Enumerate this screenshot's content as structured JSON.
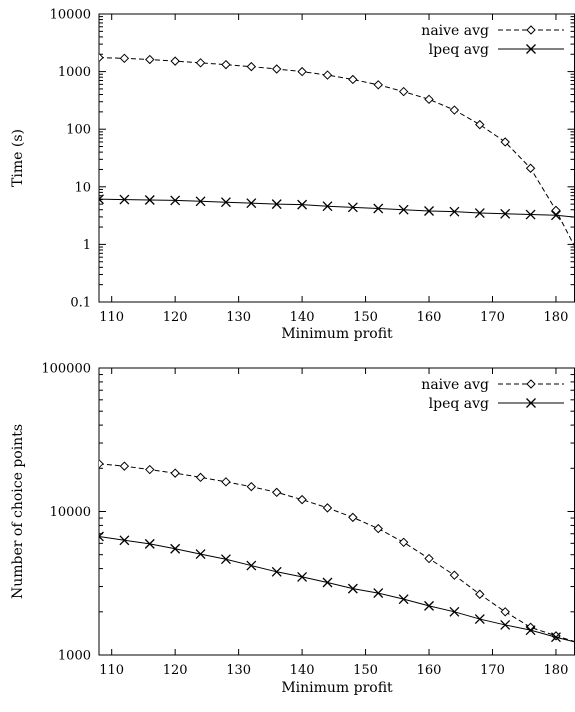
{
  "chart_data": [
    {
      "type": "line",
      "xlabel": "Minimum profit",
      "ylabel": "Time (s)",
      "yscale": "log",
      "xlim": [
        108,
        183
      ],
      "ylim": [
        0.1,
        10000
      ],
      "x_ticks": [
        110,
        120,
        130,
        140,
        150,
        160,
        170,
        180
      ],
      "y_ticks": [
        {
          "value": 0.1,
          "label": "0.1"
        },
        {
          "value": 1,
          "label": "1"
        },
        {
          "value": 10,
          "label": "10"
        },
        {
          "value": 100,
          "label": "100"
        },
        {
          "value": 1000,
          "label": "1000"
        },
        {
          "value": 10000,
          "label": "10000"
        }
      ],
      "grid": false,
      "legend_position": "top-right",
      "series": [
        {
          "name": "naive avg",
          "style": "dashed",
          "marker": "diamond",
          "x": [
            108,
            112,
            116,
            120,
            124,
            128,
            132,
            136,
            140,
            144,
            148,
            152,
            156,
            160,
            164,
            168,
            172,
            176,
            180,
            184
          ],
          "y": [
            1750,
            1700,
            1620,
            1520,
            1420,
            1320,
            1220,
            1110,
            1000,
            870,
            730,
            590,
            450,
            330,
            215,
            120,
            60,
            21,
            3.9,
            0.55
          ]
        },
        {
          "name": "lpeq avg",
          "style": "solid",
          "marker": "cross",
          "x": [
            108,
            112,
            116,
            120,
            124,
            128,
            132,
            136,
            140,
            144,
            148,
            152,
            156,
            160,
            164,
            168,
            172,
            176,
            180,
            184
          ],
          "y": [
            6.1,
            6.0,
            5.9,
            5.8,
            5.6,
            5.4,
            5.2,
            5.0,
            4.9,
            4.6,
            4.4,
            4.2,
            4.0,
            3.8,
            3.7,
            3.5,
            3.4,
            3.3,
            3.2,
            2.9
          ]
        }
      ]
    },
    {
      "type": "line",
      "xlabel": "Minimum profit",
      "ylabel": "Number of choice points",
      "yscale": "log",
      "xlim": [
        108,
        183
      ],
      "ylim": [
        1000,
        100000
      ],
      "x_ticks": [
        110,
        120,
        130,
        140,
        150,
        160,
        170,
        180
      ],
      "y_ticks": [
        {
          "value": 1000,
          "label": "1000"
        },
        {
          "value": 10000,
          "label": "10000"
        },
        {
          "value": 100000,
          "label": "100000"
        }
      ],
      "grid": false,
      "legend_position": "top-right",
      "series": [
        {
          "name": "naive avg",
          "style": "dashed",
          "marker": "diamond",
          "x": [
            108,
            112,
            116,
            120,
            124,
            128,
            132,
            136,
            140,
            144,
            148,
            152,
            156,
            160,
            164,
            168,
            172,
            176,
            180,
            184
          ],
          "y": [
            21500,
            20700,
            19600,
            18500,
            17300,
            16100,
            14900,
            13600,
            12100,
            10600,
            9100,
            7600,
            6100,
            4700,
            3600,
            2650,
            2000,
            1560,
            1360,
            1200
          ]
        },
        {
          "name": "lpeq avg",
          "style": "solid",
          "marker": "cross",
          "x": [
            108,
            112,
            116,
            120,
            124,
            128,
            132,
            136,
            140,
            144,
            148,
            152,
            156,
            160,
            164,
            168,
            172,
            176,
            180,
            184
          ],
          "y": [
            6700,
            6300,
            5950,
            5500,
            5050,
            4650,
            4200,
            3800,
            3500,
            3200,
            2900,
            2700,
            2450,
            2200,
            2000,
            1780,
            1620,
            1490,
            1330,
            1200
          ]
        }
      ]
    }
  ]
}
